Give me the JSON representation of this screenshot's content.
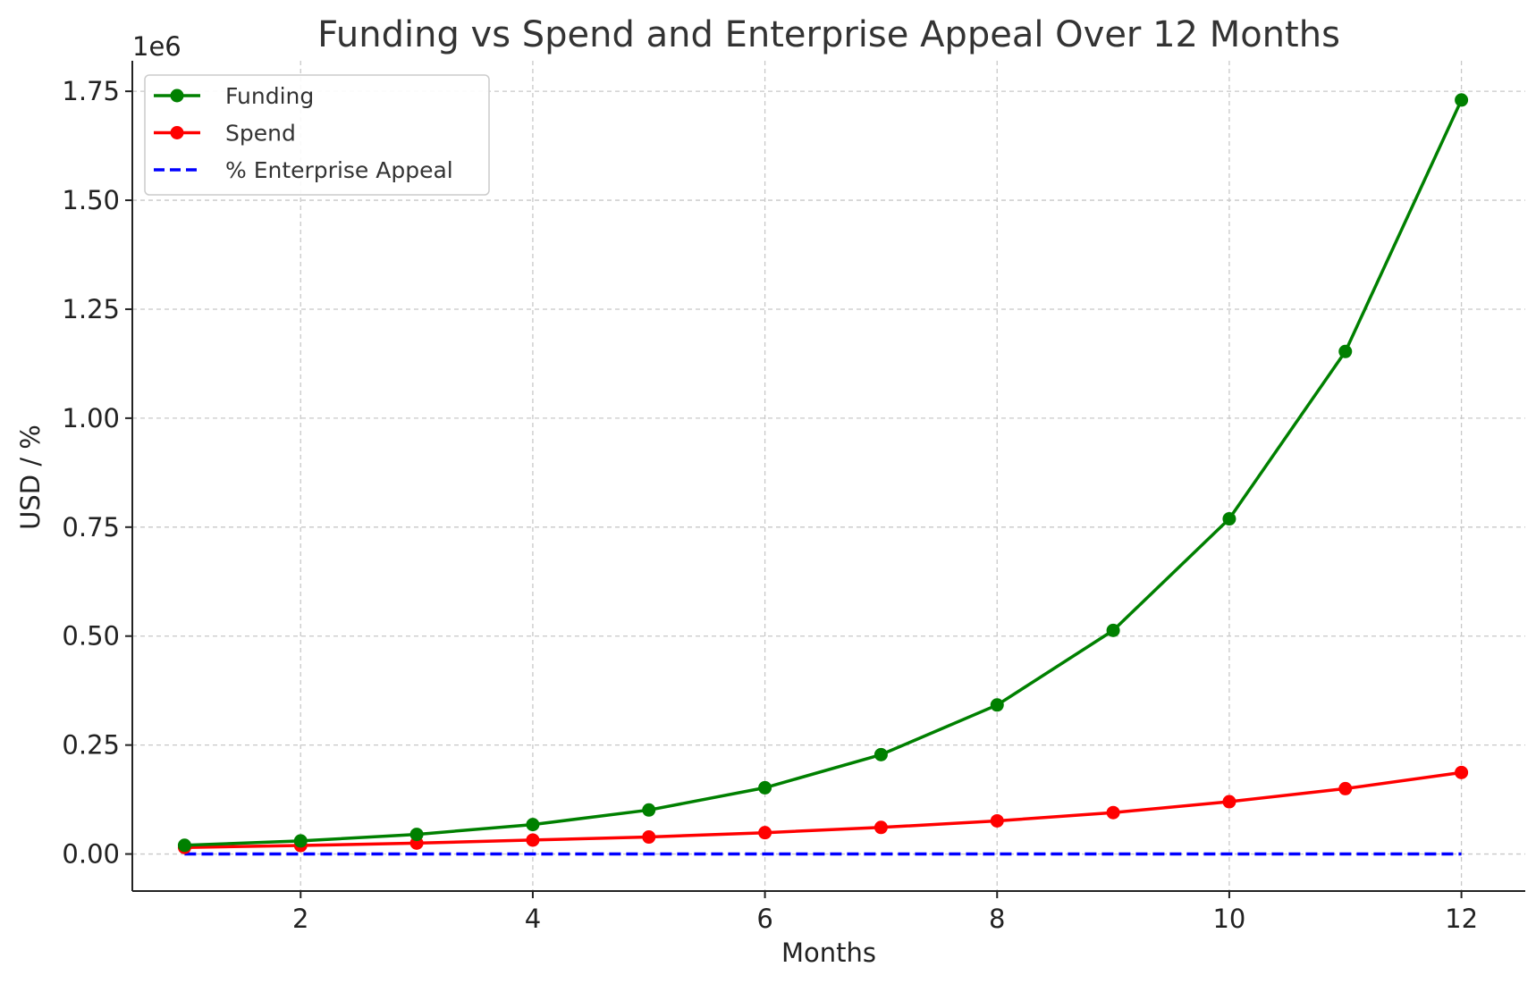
{
  "chart_data": {
    "type": "line",
    "title": "Funding vs Spend and Enterprise Appeal Over 12 Months",
    "xlabel": "Months",
    "ylabel": "USD / %",
    "y_offset_label": "1e6",
    "xlim": [
      0.55,
      12.55
    ],
    "ylim": [
      -85000,
      1820000
    ],
    "x_ticks": [
      2,
      4,
      6,
      8,
      10,
      12
    ],
    "x_tick_labels": [
      "2",
      "4",
      "6",
      "8",
      "10",
      "12"
    ],
    "y_ticks": [
      0,
      250000,
      500000,
      750000,
      1000000,
      1250000,
      1500000,
      1750000
    ],
    "y_tick_labels": [
      "0.00",
      "0.25",
      "0.50",
      "0.75",
      "1.00",
      "1.25",
      "1.50",
      "1.75"
    ],
    "grid": true,
    "legend_position": "top-left",
    "x": [
      1,
      2,
      3,
      4,
      5,
      6,
      7,
      8,
      9,
      10,
      11,
      12
    ],
    "series": [
      {
        "name": "Funding",
        "color": "#008000",
        "style": "solid",
        "marker": "circle",
        "values": [
          20000,
          30000,
          45000,
          67500,
          101000,
          152000,
          228000,
          342000,
          513000,
          769000,
          1153000,
          1730000
        ]
      },
      {
        "name": "Spend",
        "color": "#ff0000",
        "style": "solid",
        "marker": "circle",
        "values": [
          15000,
          19500,
          25000,
          32000,
          39000,
          49000,
          61000,
          76000,
          95000,
          120000,
          150000,
          187000
        ]
      },
      {
        "name": "% Enterprise Appeal",
        "color": "#0000ff",
        "style": "dashed",
        "marker": "none",
        "values": [
          0,
          0,
          0,
          0,
          0,
          0,
          0,
          0,
          0,
          0,
          0,
          0
        ]
      }
    ]
  }
}
